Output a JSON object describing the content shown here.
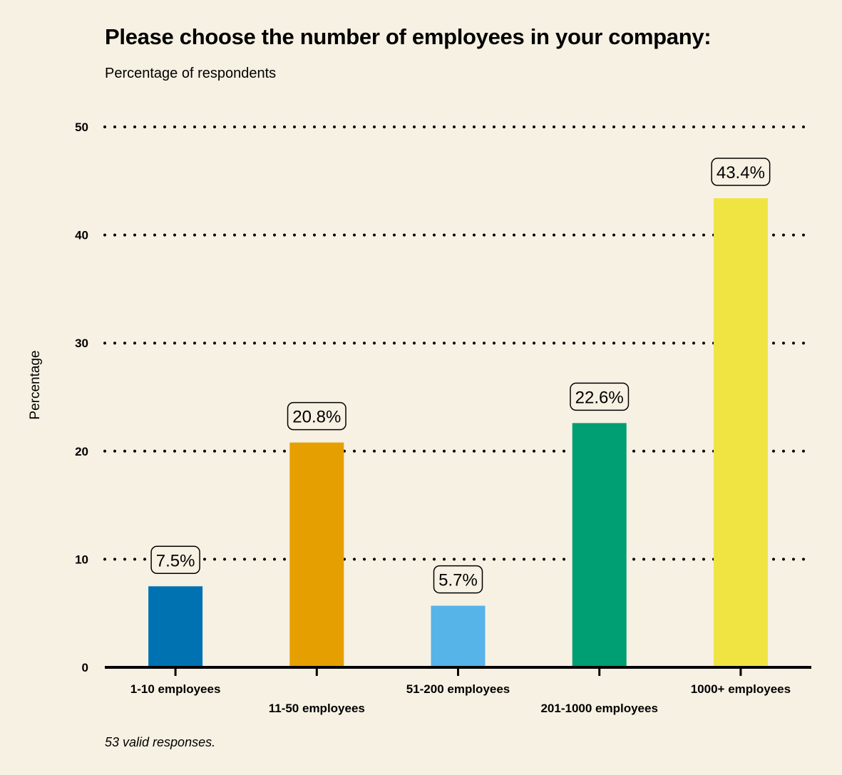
{
  "chart_data": {
    "type": "bar",
    "title": "Please choose the number of employees in your company:",
    "subtitle": "Percentage of respondents",
    "ylabel": "Percentage",
    "xlabel": "",
    "ylim": [
      0,
      50
    ],
    "yticks": [
      0,
      10,
      20,
      30,
      40,
      50
    ],
    "grid": "horizontal dotted",
    "categories": [
      "1-10 employees",
      "11-50 employees",
      "51-200 employees",
      "201-1000 employees",
      "1000+ employees"
    ],
    "values": [
      7.5,
      20.8,
      5.7,
      22.6,
      43.4
    ],
    "data_labels": [
      "7.5%",
      "20.8%",
      "5.7%",
      "22.6%",
      "43.4%"
    ],
    "colors": [
      "#0072b2",
      "#e69f00",
      "#56b4e9",
      "#009e73",
      "#f0e442"
    ],
    "footnote": "53 valid responses."
  }
}
